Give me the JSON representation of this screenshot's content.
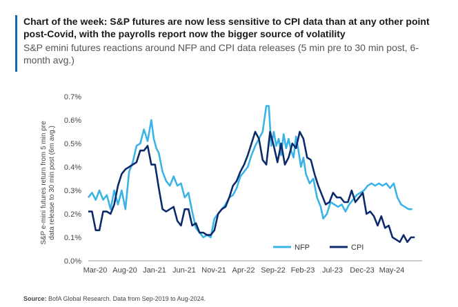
{
  "title": "Chart of the week: S&P futures are now less sensitive to CPI data than at any other point post-Covid, with the payrolls report now the bigger source of volatility",
  "subtitle": "S&P emini futures reactions around NFP and CPI data releases (5 min pre to 30 min post, 6-month avg.)",
  "source": {
    "label": "Source:",
    "text": "BofA Global Research. Data from Sep-2019 to Aug-2024."
  },
  "colors": {
    "nfp": "#3ab3e6",
    "cpi": "#0b2a6b",
    "accent": "#1565c0"
  },
  "chart_data": {
    "type": "line",
    "title": "S&P emini futures reactions around NFP and CPI data releases",
    "ylabel": "S&P e-mini futures return from 5 min pre data release to 30 min post (6m avg.)",
    "ylabel_lines": [
      "S&P e-mini futures return from 5 min pre",
      "data release to 30 min post (6m avg.)"
    ],
    "xlabel": "",
    "x_ticks": [
      "Mar-20",
      "Aug-20",
      "Jan-21",
      "Jun-21",
      "Nov-21",
      "Apr-22",
      "Sep-22",
      "Feb-23",
      "Jul-23",
      "Dec-23",
      "May-24"
    ],
    "y_ticks": [
      "0.0%",
      "0.1%",
      "0.2%",
      "0.3%",
      "0.4%",
      "0.5%",
      "0.6%",
      "0.7%"
    ],
    "ylim": [
      0,
      0.7
    ],
    "xlim": [
      0,
      54
    ],
    "legend": {
      "position": "bottom-center",
      "entries": [
        "NFP",
        "CPI"
      ]
    },
    "series": [
      {
        "name": "NFP",
        "color": "#3ab3e6",
        "points": [
          [
            0,
            0.27
          ],
          [
            0.6,
            0.29
          ],
          [
            1.2,
            0.26
          ],
          [
            1.8,
            0.3
          ],
          [
            2.4,
            0.26
          ],
          [
            3.0,
            0.28
          ],
          [
            3.6,
            0.22
          ],
          [
            4.2,
            0.3
          ],
          [
            4.8,
            0.24
          ],
          [
            5.4,
            0.3
          ],
          [
            6.0,
            0.22
          ],
          [
            6.6,
            0.38
          ],
          [
            7.2,
            0.42
          ],
          [
            7.8,
            0.49
          ],
          [
            8.4,
            0.5
          ],
          [
            9.0,
            0.56
          ],
          [
            9.6,
            0.51
          ],
          [
            10.2,
            0.6
          ],
          [
            10.6,
            0.52
          ],
          [
            11.0,
            0.48
          ],
          [
            11.4,
            0.46
          ],
          [
            12.0,
            0.38
          ],
          [
            12.6,
            0.34
          ],
          [
            13.2,
            0.32
          ],
          [
            13.8,
            0.36
          ],
          [
            14.4,
            0.32
          ],
          [
            15.0,
            0.33
          ],
          [
            15.6,
            0.27
          ],
          [
            16.2,
            0.29
          ],
          [
            16.8,
            0.21
          ],
          [
            17.4,
            0.14
          ],
          [
            18.0,
            0.12
          ],
          [
            18.6,
            0.1
          ],
          [
            19.2,
            0.11
          ],
          [
            19.8,
            0.1
          ],
          [
            20.4,
            0.18
          ],
          [
            21.0,
            0.2
          ],
          [
            21.6,
            0.22
          ],
          [
            22.2,
            0.24
          ],
          [
            22.8,
            0.27
          ],
          [
            23.4,
            0.28
          ],
          [
            24.0,
            0.31
          ],
          [
            24.6,
            0.36
          ],
          [
            25.2,
            0.38
          ],
          [
            25.8,
            0.4
          ],
          [
            26.4,
            0.45
          ],
          [
            27.0,
            0.49
          ],
          [
            27.6,
            0.52
          ],
          [
            28.2,
            0.55
          ],
          [
            28.8,
            0.66
          ],
          [
            29.2,
            0.66
          ],
          [
            29.6,
            0.49
          ],
          [
            30.0,
            0.55
          ],
          [
            30.4,
            0.49
          ],
          [
            30.8,
            0.52
          ],
          [
            31.2,
            0.45
          ],
          [
            31.6,
            0.54
          ],
          [
            32.0,
            0.48
          ],
          [
            32.4,
            0.52
          ],
          [
            32.8,
            0.47
          ],
          [
            33.2,
            0.44
          ],
          [
            33.6,
            0.53
          ],
          [
            34.0,
            0.47
          ],
          [
            34.4,
            0.4
          ],
          [
            34.8,
            0.44
          ],
          [
            35.2,
            0.37
          ],
          [
            35.8,
            0.33
          ],
          [
            36.4,
            0.35
          ],
          [
            37.0,
            0.27
          ],
          [
            37.6,
            0.23
          ],
          [
            38.0,
            0.18
          ],
          [
            38.6,
            0.2
          ],
          [
            39.2,
            0.25
          ],
          [
            39.8,
            0.24
          ],
          [
            40.4,
            0.23
          ],
          [
            41.0,
            0.24
          ],
          [
            41.6,
            0.21
          ],
          [
            42.2,
            0.24
          ],
          [
            42.8,
            0.26
          ],
          [
            43.4,
            0.28
          ],
          [
            44.0,
            0.29
          ],
          [
            44.6,
            0.3
          ],
          [
            45.2,
            0.32
          ],
          [
            45.8,
            0.33
          ],
          [
            46.4,
            0.32
          ],
          [
            47.0,
            0.33
          ],
          [
            47.6,
            0.32
          ],
          [
            48.2,
            0.33
          ],
          [
            48.8,
            0.31
          ],
          [
            49.4,
            0.33
          ],
          [
            50.0,
            0.27
          ],
          [
            50.6,
            0.24
          ],
          [
            51.2,
            0.23
          ],
          [
            51.8,
            0.22
          ],
          [
            52.4,
            0.22
          ]
        ]
      },
      {
        "name": "CPI",
        "color": "#0b2a6b",
        "points": [
          [
            0,
            0.21
          ],
          [
            0.6,
            0.21
          ],
          [
            1.2,
            0.13
          ],
          [
            1.8,
            0.13
          ],
          [
            2.4,
            0.21
          ],
          [
            3.0,
            0.21
          ],
          [
            3.6,
            0.2
          ],
          [
            4.2,
            0.24
          ],
          [
            4.8,
            0.32
          ],
          [
            5.4,
            0.37
          ],
          [
            6.0,
            0.39
          ],
          [
            6.6,
            0.4
          ],
          [
            7.2,
            0.41
          ],
          [
            7.8,
            0.42
          ],
          [
            8.4,
            0.47
          ],
          [
            9.0,
            0.47
          ],
          [
            9.6,
            0.49
          ],
          [
            10.2,
            0.41
          ],
          [
            10.8,
            0.41
          ],
          [
            11.4,
            0.31
          ],
          [
            12.0,
            0.22
          ],
          [
            12.6,
            0.21
          ],
          [
            13.2,
            0.22
          ],
          [
            13.8,
            0.23
          ],
          [
            14.4,
            0.17
          ],
          [
            15.0,
            0.15
          ],
          [
            15.6,
            0.22
          ],
          [
            16.2,
            0.22
          ],
          [
            16.8,
            0.15
          ],
          [
            17.4,
            0.16
          ],
          [
            18.0,
            0.12
          ],
          [
            18.6,
            0.12
          ],
          [
            19.2,
            0.11
          ],
          [
            19.8,
            0.11
          ],
          [
            20.4,
            0.13
          ],
          [
            21.0,
            0.2
          ],
          [
            21.6,
            0.22
          ],
          [
            22.2,
            0.23
          ],
          [
            22.8,
            0.27
          ],
          [
            23.4,
            0.32
          ],
          [
            24.0,
            0.34
          ],
          [
            24.6,
            0.38
          ],
          [
            25.2,
            0.41
          ],
          [
            25.8,
            0.45
          ],
          [
            26.4,
            0.5
          ],
          [
            27.0,
            0.55
          ],
          [
            27.6,
            0.52
          ],
          [
            28.2,
            0.43
          ],
          [
            28.8,
            0.41
          ],
          [
            29.4,
            0.55
          ],
          [
            30.0,
            0.49
          ],
          [
            30.6,
            0.42
          ],
          [
            31.2,
            0.5
          ],
          [
            31.8,
            0.41
          ],
          [
            32.4,
            0.44
          ],
          [
            33.0,
            0.5
          ],
          [
            33.6,
            0.48
          ],
          [
            34.2,
            0.55
          ],
          [
            34.8,
            0.52
          ],
          [
            35.4,
            0.44
          ],
          [
            36.0,
            0.43
          ],
          [
            36.6,
            0.37
          ],
          [
            37.2,
            0.32
          ],
          [
            37.8,
            0.28
          ],
          [
            38.4,
            0.24
          ],
          [
            39.0,
            0.25
          ],
          [
            39.6,
            0.29
          ],
          [
            40.2,
            0.27
          ],
          [
            40.8,
            0.27
          ],
          [
            41.4,
            0.25
          ],
          [
            42.0,
            0.25
          ],
          [
            42.6,
            0.3
          ],
          [
            43.2,
            0.25
          ],
          [
            43.8,
            0.27
          ],
          [
            44.4,
            0.29
          ],
          [
            45.0,
            0.2
          ],
          [
            45.6,
            0.21
          ],
          [
            46.2,
            0.19
          ],
          [
            46.8,
            0.15
          ],
          [
            47.4,
            0.19
          ],
          [
            48.0,
            0.14
          ],
          [
            48.6,
            0.15
          ],
          [
            49.2,
            0.1
          ],
          [
            49.8,
            0.09
          ],
          [
            50.4,
            0.08
          ],
          [
            51.0,
            0.11
          ],
          [
            51.6,
            0.08
          ],
          [
            52.2,
            0.1
          ],
          [
            52.8,
            0.1
          ]
        ]
      }
    ]
  }
}
